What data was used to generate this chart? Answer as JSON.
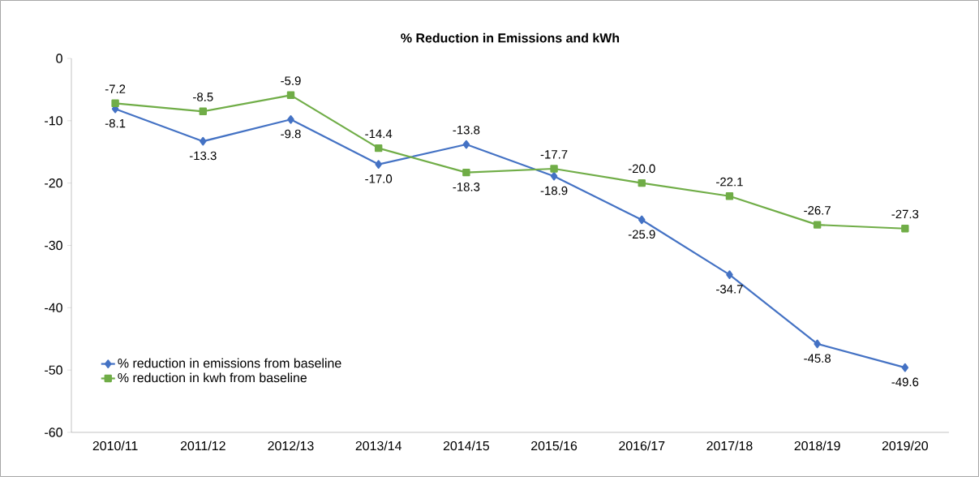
{
  "chart_data": {
    "type": "line",
    "title": "**% Reduction in Emissions and kWh**",
    "categories": [
      "2010/11",
      "2011/12",
      "2012/13",
      "2013/14",
      "2014/15",
      "2015/16",
      "2016/17",
      "2017/18",
      "2018/19",
      "2019/20"
    ],
    "series": [
      {
        "name": "% reduction in emissions from baseline",
        "color": "#4472c4",
        "marker": "diamond",
        "values": [
          -8.1,
          -13.3,
          -9.8,
          -17.0,
          -13.8,
          -18.9,
          -25.9,
          -34.7,
          -45.8,
          -49.6
        ],
        "value_labels": [
          "-8.1",
          "-13.3",
          "-9.8",
          "-17.0",
          "-13.8",
          "-18.9",
          "-25.9",
          "-34.7",
          "-45.8",
          "-49.6"
        ]
      },
      {
        "name": "% reduction in kwh from baseline",
        "color": "#70ad47",
        "marker": "square",
        "values": [
          -7.2,
          -8.5,
          -5.9,
          -14.4,
          -18.3,
          -17.7,
          -20.0,
          -22.1,
          -26.7,
          -27.3
        ],
        "value_labels": [
          "-7.2",
          "-8.5",
          "-5.9",
          "-14.4",
          "-18.3",
          "-17.7",
          "-20.0",
          "-22.1",
          "-26.7",
          "-27.3"
        ]
      }
    ],
    "ylim": [
      -60,
      0
    ],
    "yticks": [
      -60,
      -50,
      -40,
      -30,
      -20,
      -10,
      0
    ],
    "legend": "bottom left",
    "grid": false,
    "line_style": "solid"
  }
}
